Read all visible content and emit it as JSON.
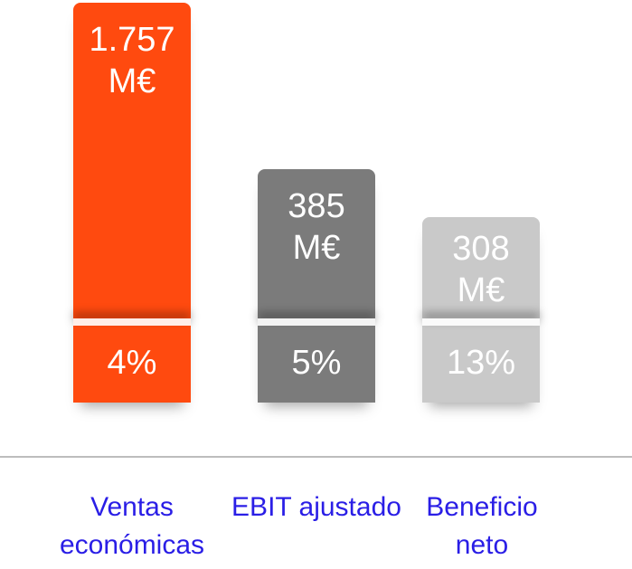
{
  "items": [
    {
      "value": "1.757 M€",
      "change": "4%",
      "label": "Ventas económicas"
    },
    {
      "value": "385 M€",
      "change": "5%",
      "label": "EBIT ajustado"
    },
    {
      "value": "308 M€",
      "change": "13%",
      "label": "Beneficio neto"
    }
  ]
}
